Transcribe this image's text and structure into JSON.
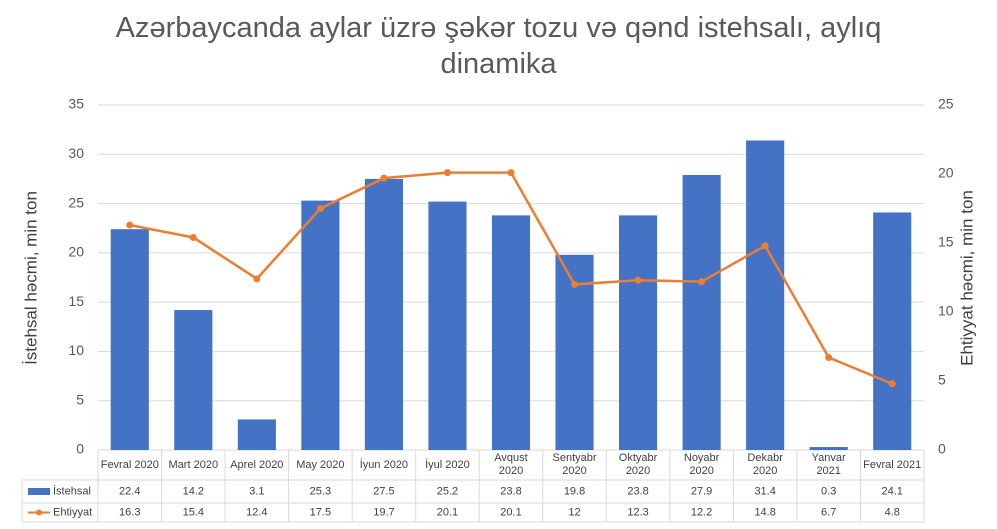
{
  "chart_data": {
    "type": "bar_line_table",
    "title": "Azərbaycanda aylar üzrə şəkər tozu və qənd istehsalı, aylıq dinamika",
    "ylabel": "İstehsal həcmi, min ton",
    "y2label": "Ehtiyyat həcmi, min ton",
    "categories": [
      "Fevral 2020",
      "Mart 2020",
      "Aprel 2020",
      "May 2020",
      "İyun 2020",
      "İyul 2020",
      "Avqust 2020",
      "Sentyabr 2020",
      "Oktyabr 2020",
      "Noyabr 2020",
      "Dekabr 2020",
      "Yanvar 2021",
      "Fevral 2021"
    ],
    "series": [
      {
        "name": "İstehsal",
        "type": "bar",
        "color": "#4472c4",
        "values": [
          22.4,
          14.2,
          3.1,
          25.3,
          27.5,
          25.2,
          23.8,
          19.8,
          23.8,
          27.9,
          31.4,
          0.3,
          24.1
        ]
      },
      {
        "name": "Ehtiyyat",
        "type": "line",
        "axis": "y2",
        "color": "#ed7d31",
        "values": [
          16.3,
          15.4,
          12.4,
          17.5,
          19.7,
          20.1,
          20.1,
          12,
          12.3,
          12.2,
          14.8,
          6.7,
          4.8
        ]
      }
    ],
    "ylim": [
      0,
      35
    ],
    "yticks": [
      0,
      5,
      10,
      15,
      20,
      25,
      30,
      35
    ],
    "y2lim": [
      0,
      25
    ],
    "y2ticks": [
      0,
      5,
      10,
      15,
      20,
      25
    ],
    "grid": true
  }
}
